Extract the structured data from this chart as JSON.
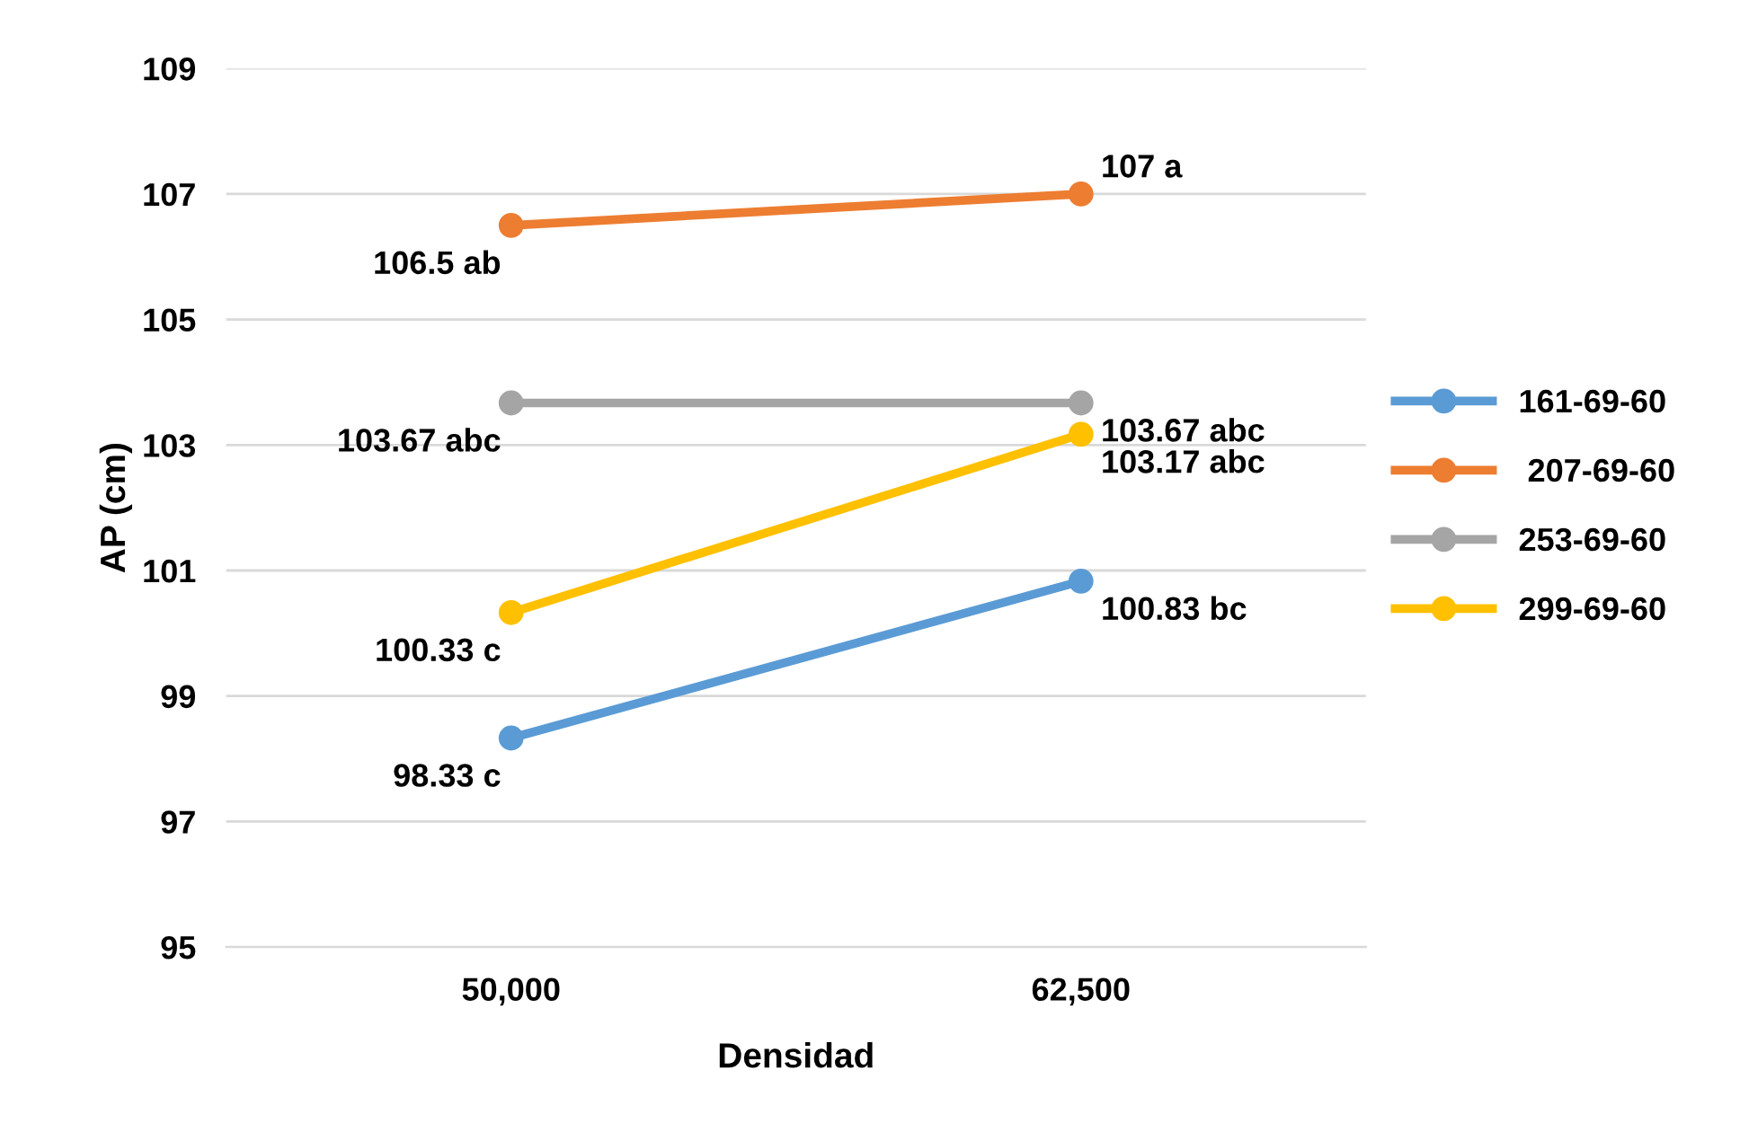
{
  "chart_data": {
    "type": "line",
    "xlabel": "Densidad",
    "ylabel": "AP (cm)",
    "categories": [
      "50,000",
      "62,500"
    ],
    "series": [
      {
        "name": "161-69-60",
        "color": "#5b9bd5",
        "values": [
          98.33,
          100.83
        ],
        "value_labels": [
          "98.33 c",
          "100.83 bc"
        ]
      },
      {
        "name": " 207-69-60",
        "color": "#ed7d31",
        "values": [
          106.5,
          107
        ],
        "value_labels": [
          "106.5 ab",
          "107 a"
        ]
      },
      {
        "name": "253-69-60",
        "color": "#a5a5a5",
        "values": [
          103.67,
          103.67
        ],
        "value_labels": [
          "103.67 abc",
          "103.67 abc"
        ]
      },
      {
        "name": "299-69-60",
        "color": "#ffc000",
        "values": [
          100.33,
          103.17
        ],
        "value_labels": [
          "100.33 c",
          "103.17 abc"
        ]
      }
    ],
    "ylim": [
      95,
      109
    ],
    "yticks": [
      95,
      97,
      99,
      101,
      103,
      105,
      107,
      109
    ],
    "grid": "y",
    "legend": "right",
    "marker": "circle",
    "line_style": "solid"
  }
}
